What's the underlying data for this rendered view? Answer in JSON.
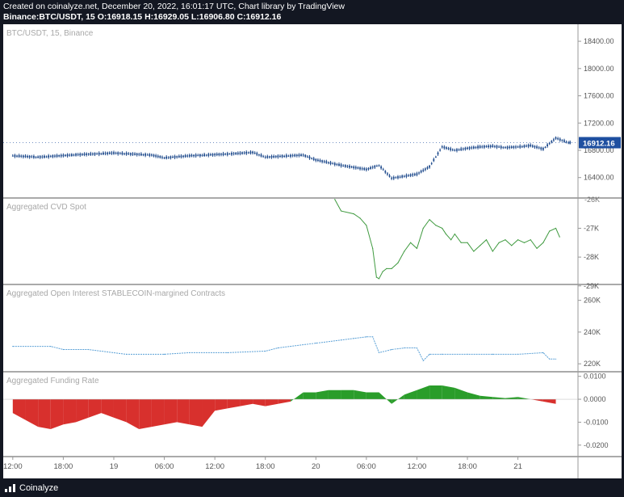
{
  "header": {
    "line1": "Created on coinalyze.net, December 20, 2022, 16:01:17 UTC, Chart library by TradingView",
    "line2": "Binance:BTC/USDT, 15 O:16918.15 H:16929.05 L:16906.80 C:16912.16"
  },
  "footer": {
    "brand": "Coinalyze"
  },
  "colors": {
    "price": "#1e4a8c",
    "cvd": "#3f9a3f",
    "oi": "#5aa0d6",
    "funding_pos": "#2a9d2a",
    "funding_neg": "#d8302d",
    "badge": "#1e4fa0"
  },
  "chart_data": [
    {
      "type": "candlestick",
      "title": "BTC/USDT, 15, Binance",
      "ylim": [
        16100,
        18650
      ],
      "y_ticks": [
        "18400.00",
        "18000.00",
        "17600.00",
        "17200.00",
        "16800.00",
        "16400.00"
      ],
      "last_value_label": "16912.16",
      "x": [
        0,
        2,
        5,
        8,
        11,
        12,
        14,
        17,
        19,
        20,
        23,
        24,
        26,
        28,
        29,
        30,
        32,
        33,
        34,
        35,
        36,
        37,
        38,
        39,
        40,
        41,
        42,
        43,
        44
      ],
      "values": [
        16720,
        16700,
        16735,
        16760,
        16730,
        16690,
        16720,
        16745,
        16770,
        16700,
        16730,
        16660,
        16580,
        16520,
        16580,
        16390,
        16450,
        16560,
        16850,
        16800,
        16830,
        16850,
        16860,
        16840,
        16850,
        16870,
        16820,
        16980,
        16912
      ]
    },
    {
      "type": "line",
      "title": "Aggregated CVD Spot",
      "ylim": [
        -28950,
        -25950
      ],
      "y_ticks": [
        "-26K",
        "-27K",
        "-28K",
        "-29K"
      ],
      "x": [
        25.5,
        26,
        27,
        27.5,
        28,
        28.5,
        28.8,
        29,
        29.3,
        29.6,
        30,
        30.5,
        31,
        31.5,
        32,
        32.5,
        33,
        33.5,
        34,
        34.3,
        34.7,
        35,
        35.5,
        36,
        36.5,
        37,
        37.5,
        38,
        38.5,
        39,
        39.5,
        40,
        40.5,
        41,
        41.5,
        42,
        42.5,
        43,
        43.3
      ],
      "values": [
        -26000,
        -26400,
        -26500,
        -26650,
        -26900,
        -27700,
        -28700,
        -28750,
        -28500,
        -28400,
        -28400,
        -28200,
        -27800,
        -27500,
        -27700,
        -27000,
        -26700,
        -26900,
        -27000,
        -27200,
        -27400,
        -27200,
        -27500,
        -27500,
        -27800,
        -27600,
        -27400,
        -27800,
        -27500,
        -27400,
        -27600,
        -27400,
        -27500,
        -27400,
        -27700,
        -27500,
        -27100,
        -27000,
        -27300
      ]
    },
    {
      "type": "line",
      "title": "Aggregated Open Interest STABLECOIN-margined Contracts",
      "ylim": [
        215000,
        270000
      ],
      "y_ticks": [
        "260K",
        "240K",
        "220K"
      ],
      "x": [
        0,
        3,
        4,
        6,
        9,
        12,
        14,
        17,
        20,
        21,
        22,
        24,
        26,
        27,
        28,
        28.5,
        29,
        30,
        31,
        32,
        32.5,
        33,
        34,
        36,
        38,
        40,
        42,
        42.5,
        43
      ],
      "values": [
        231000,
        231000,
        229000,
        229000,
        226000,
        226000,
        227000,
        227000,
        228000,
        230000,
        231000,
        233000,
        235000,
        236000,
        237000,
        237000,
        227000,
        229000,
        230000,
        230000,
        222000,
        226000,
        226000,
        226000,
        226000,
        226000,
        227000,
        223000,
        223000
      ]
    },
    {
      "type": "area",
      "title": "Aggregated Funding Rate",
      "ylim": [
        -0.025,
        0.012
      ],
      "y_ticks": [
        "0.0100",
        "0.0000",
        "-0.0100",
        "-0.0200"
      ],
      "x": [
        0,
        1,
        2,
        3,
        4,
        5,
        6,
        7,
        8,
        9,
        10,
        11,
        12,
        13,
        14,
        15,
        16,
        17,
        18,
        19,
        20,
        21,
        22,
        23,
        24,
        25,
        26,
        27,
        28,
        29,
        30,
        31,
        32,
        33,
        34,
        35,
        36,
        37,
        38,
        39,
        40,
        41,
        42,
        43
      ],
      "values": [
        -0.006,
        -0.009,
        -0.012,
        -0.013,
        -0.011,
        -0.01,
        -0.008,
        -0.006,
        -0.008,
        -0.01,
        -0.013,
        -0.012,
        -0.011,
        -0.01,
        -0.011,
        -0.012,
        -0.005,
        -0.004,
        -0.003,
        -0.002,
        -0.003,
        -0.002,
        -0.001,
        0.003,
        0.003,
        0.004,
        0.004,
        0.004,
        0.003,
        0.003,
        -0.002,
        0.002,
        0.004,
        0.006,
        0.006,
        0.005,
        0.003,
        0.0015,
        0.001,
        0.0005,
        0.001,
        0.0,
        -0.001,
        -0.002
      ]
    }
  ],
  "x_axis": {
    "ticks": [
      "12:00",
      "18:00",
      "19",
      "06:00",
      "12:00",
      "18:00",
      "20",
      "06:00",
      "12:00",
      "18:00",
      "21"
    ],
    "tick_pos": [
      0,
      4,
      8,
      12,
      16,
      20,
      24,
      28,
      32,
      36,
      40
    ]
  }
}
